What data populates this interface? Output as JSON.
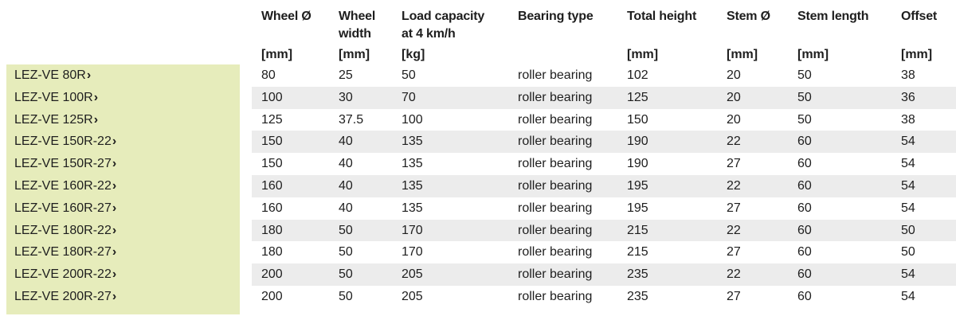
{
  "table": {
    "columns": [
      {
        "key": "wheel_d",
        "header": [
          "Wheel Ø"
        ],
        "unit": "[mm]"
      },
      {
        "key": "wheel_w",
        "header": [
          "Wheel",
          "width"
        ],
        "unit": "[mm]"
      },
      {
        "key": "load",
        "header": [
          "Load capacity",
          "at 4 km/h"
        ],
        "unit": "[kg]"
      },
      {
        "key": "bearing",
        "header": [
          "Bearing type"
        ],
        "unit": ""
      },
      {
        "key": "height",
        "header": [
          "Total height"
        ],
        "unit": "[mm]"
      },
      {
        "key": "stem_d",
        "header": [
          "Stem Ø"
        ],
        "unit": "[mm]"
      },
      {
        "key": "stem_len",
        "header": [
          "Stem length"
        ],
        "unit": "[mm]"
      },
      {
        "key": "offset",
        "header": [
          "Offset"
        ],
        "unit": "[mm]"
      }
    ],
    "link_icon": "chevron-right-icon",
    "rows": [
      {
        "article": "LEZ-VE 80R",
        "wheel_d": "80",
        "wheel_w": "25",
        "load": "50",
        "bearing": "roller bearing",
        "height": "102",
        "stem_d": "20",
        "stem_len": "50",
        "offset": "38"
      },
      {
        "article": "LEZ-VE 100R",
        "wheel_d": "100",
        "wheel_w": "30",
        "load": "70",
        "bearing": "roller bearing",
        "height": "125",
        "stem_d": "20",
        "stem_len": "50",
        "offset": "36"
      },
      {
        "article": "LEZ-VE 125R",
        "wheel_d": "125",
        "wheel_w": "37.5",
        "load": "100",
        "bearing": "roller bearing",
        "height": "150",
        "stem_d": "20",
        "stem_len": "50",
        "offset": "38"
      },
      {
        "article": "LEZ-VE 150R-22",
        "wheel_d": "150",
        "wheel_w": "40",
        "load": "135",
        "bearing": "roller bearing",
        "height": "190",
        "stem_d": "22",
        "stem_len": "60",
        "offset": "54"
      },
      {
        "article": "LEZ-VE 150R-27",
        "wheel_d": "150",
        "wheel_w": "40",
        "load": "135",
        "bearing": "roller bearing",
        "height": "190",
        "stem_d": "27",
        "stem_len": "60",
        "offset": "54"
      },
      {
        "article": "LEZ-VE 160R-22",
        "wheel_d": "160",
        "wheel_w": "40",
        "load": "135",
        "bearing": "roller bearing",
        "height": "195",
        "stem_d": "22",
        "stem_len": "60",
        "offset": "54"
      },
      {
        "article": "LEZ-VE 160R-27",
        "wheel_d": "160",
        "wheel_w": "40",
        "load": "135",
        "bearing": "roller bearing",
        "height": "195",
        "stem_d": "27",
        "stem_len": "60",
        "offset": "54"
      },
      {
        "article": "LEZ-VE 180R-22",
        "wheel_d": "180",
        "wheel_w": "50",
        "load": "170",
        "bearing": "roller bearing",
        "height": "215",
        "stem_d": "22",
        "stem_len": "60",
        "offset": "50"
      },
      {
        "article": "LEZ-VE 180R-27",
        "wheel_d": "180",
        "wheel_w": "50",
        "load": "170",
        "bearing": "roller bearing",
        "height": "215",
        "stem_d": "27",
        "stem_len": "60",
        "offset": "50"
      },
      {
        "article": "LEZ-VE 200R-22",
        "wheel_d": "200",
        "wheel_w": "50",
        "load": "205",
        "bearing": "roller bearing",
        "height": "235",
        "stem_d": "22",
        "stem_len": "60",
        "offset": "54"
      },
      {
        "article": "LEZ-VE 200R-27",
        "wheel_d": "200",
        "wheel_w": "50",
        "load": "205",
        "bearing": "roller bearing",
        "height": "235",
        "stem_d": "27",
        "stem_len": "60",
        "offset": "54"
      }
    ]
  }
}
